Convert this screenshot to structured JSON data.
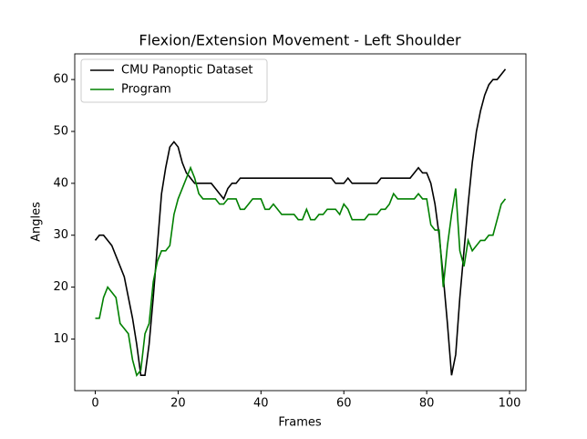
{
  "chart_data": {
    "type": "line",
    "title": "Flexion/Extension Movement - Left Shoulder",
    "x_label": "Frames",
    "y_label": "Angles",
    "x": [
      0,
      1,
      2,
      3,
      4,
      5,
      6,
      7,
      8,
      9,
      10,
      11,
      12,
      13,
      14,
      15,
      16,
      17,
      18,
      19,
      20,
      21,
      22,
      23,
      24,
      25,
      26,
      27,
      28,
      29,
      30,
      31,
      32,
      33,
      34,
      35,
      36,
      37,
      38,
      39,
      40,
      41,
      42,
      43,
      44,
      45,
      46,
      47,
      48,
      49,
      50,
      51,
      52,
      53,
      54,
      55,
      56,
      57,
      58,
      59,
      60,
      61,
      62,
      63,
      64,
      65,
      66,
      67,
      68,
      69,
      70,
      71,
      72,
      73,
      74,
      75,
      76,
      77,
      78,
      79,
      80,
      81,
      82,
      83,
      84,
      85,
      86,
      87,
      88,
      89,
      90,
      91,
      92,
      93,
      94,
      95,
      96,
      97,
      98,
      99
    ],
    "series": [
      {
        "name": "CMU Panoptic Dataset",
        "color": "#000000",
        "values": [
          29,
          30,
          30,
          29,
          28,
          26,
          24,
          22,
          18,
          14,
          9,
          3,
          3,
          9,
          18,
          28,
          38,
          43,
          47,
          48,
          47,
          44,
          42,
          41,
          40,
          40,
          40,
          40,
          40,
          39,
          38,
          37,
          39,
          40,
          40,
          41,
          41,
          41,
          41,
          41,
          41,
          41,
          41,
          41,
          41,
          41,
          41,
          41,
          41,
          41,
          41,
          41,
          41,
          41,
          41,
          41,
          41,
          41,
          40,
          40,
          40,
          41,
          40,
          40,
          40,
          40,
          40,
          40,
          40,
          41,
          41,
          41,
          41,
          41,
          41,
          41,
          41,
          42,
          43,
          42,
          42,
          40,
          36,
          30,
          22,
          13,
          3,
          7,
          18,
          27,
          36,
          44,
          50,
          54,
          57,
          59,
          60,
          60,
          61,
          62
        ]
      },
      {
        "name": "Program",
        "color": "#008000",
        "values": [
          14,
          14,
          18,
          20,
          19,
          18,
          13,
          12,
          11,
          6,
          3,
          4,
          11,
          13,
          21,
          25,
          27,
          27,
          28,
          34,
          37,
          39,
          41,
          43,
          41,
          38,
          37,
          37,
          37,
          37,
          36,
          36,
          37,
          37,
          37,
          35,
          35,
          36,
          37,
          37,
          37,
          35,
          35,
          36,
          35,
          34,
          34,
          34,
          34,
          33,
          33,
          35,
          33,
          33,
          34,
          34,
          35,
          35,
          35,
          34,
          36,
          35,
          33,
          33,
          33,
          33,
          34,
          34,
          34,
          35,
          35,
          36,
          38,
          37,
          37,
          37,
          37,
          37,
          38,
          37,
          37,
          32,
          31,
          31,
          20,
          28,
          34,
          39,
          27,
          24,
          29,
          27,
          28,
          29,
          29,
          30,
          30,
          33,
          36,
          37
        ]
      }
    ],
    "xlim": [
      -4.95,
      103.95
    ],
    "ylim": [
      0.05,
      64.95
    ],
    "xticks": [
      0,
      20,
      40,
      60,
      80,
      100
    ],
    "yticks": [
      10,
      20,
      30,
      40,
      50,
      60
    ],
    "legend": "upper left"
  }
}
